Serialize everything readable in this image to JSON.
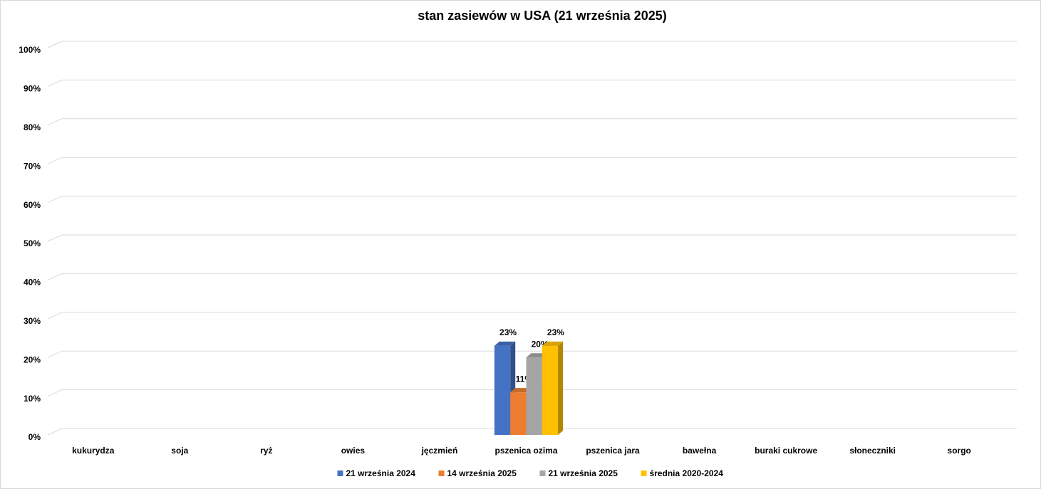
{
  "chart_data": {
    "type": "bar3d",
    "title": "stan zasiewów w USA (21 września 2025)",
    "categories": [
      "kukurydza",
      "soja",
      "ryż",
      "owies",
      "jęczmień",
      "pszenica ozima",
      "pszenica jara",
      "bawełna",
      "buraki cukrowe",
      "słoneczniki",
      "sorgo"
    ],
    "series": [
      {
        "name": "21 września 2024",
        "color": "#4472c4",
        "values": [
          null,
          null,
          null,
          null,
          null,
          23,
          null,
          null,
          null,
          null,
          null
        ],
        "value_labels": [
          null,
          null,
          null,
          null,
          null,
          "23%",
          null,
          null,
          null,
          null,
          null
        ]
      },
      {
        "name": "14 września 2025",
        "color": "#ed7d31",
        "values": [
          null,
          null,
          null,
          null,
          null,
          11,
          null,
          null,
          null,
          null,
          null
        ],
        "value_labels": [
          null,
          null,
          null,
          null,
          null,
          "11%",
          null,
          null,
          null,
          null,
          null
        ]
      },
      {
        "name": "21 września 2025",
        "color": "#a5a5a5",
        "values": [
          null,
          null,
          null,
          null,
          null,
          20,
          null,
          null,
          null,
          null,
          null
        ],
        "value_labels": [
          null,
          null,
          null,
          null,
          null,
          "20%",
          null,
          null,
          null,
          null,
          null
        ]
      },
      {
        "name": "średnia 2020-2024",
        "color": "#ffc000",
        "values": [
          null,
          null,
          null,
          null,
          null,
          23,
          null,
          null,
          null,
          null,
          null
        ],
        "value_labels": [
          null,
          null,
          null,
          null,
          null,
          "23%",
          null,
          null,
          null,
          null,
          null
        ]
      }
    ],
    "ylim": [
      0,
      100
    ],
    "yticks": [
      {
        "value": 0,
        "label": "0%"
      },
      {
        "value": 10,
        "label": "10%"
      },
      {
        "value": 20,
        "label": "20%"
      },
      {
        "value": 30,
        "label": "30%"
      },
      {
        "value": 40,
        "label": "40%"
      },
      {
        "value": 50,
        "label": "50%"
      },
      {
        "value": 60,
        "label": "60%"
      },
      {
        "value": 70,
        "label": "70%"
      },
      {
        "value": 80,
        "label": "80%"
      },
      {
        "value": 90,
        "label": "90%"
      },
      {
        "value": 100,
        "label": "100%"
      }
    ],
    "grid": true,
    "legend": "bottom"
  }
}
